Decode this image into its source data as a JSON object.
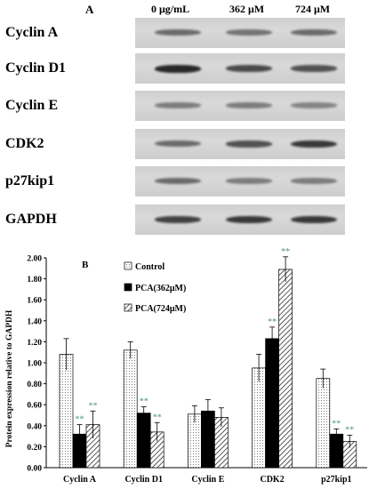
{
  "panel_a": {
    "label": "A",
    "concentrations": [
      "0 μg/mL",
      "362 μM",
      "724 μM"
    ],
    "blots": [
      {
        "label": "Cyclin A",
        "band_intensity": [
          0.55,
          0.5,
          0.55
        ]
      },
      {
        "label": "Cyclin D1",
        "band_intensity": [
          0.95,
          0.75,
          0.7
        ]
      },
      {
        "label": "Cyclin E",
        "band_intensity": [
          0.45,
          0.45,
          0.4
        ]
      },
      {
        "label": "CDK2",
        "band_intensity": [
          0.55,
          0.7,
          0.85
        ]
      },
      {
        "label": "p27kip1",
        "band_intensity": [
          0.55,
          0.45,
          0.45
        ]
      },
      {
        "label": "GAPDH",
        "band_intensity": [
          0.8,
          0.85,
          0.85
        ]
      }
    ]
  },
  "panel_b": {
    "label": "B",
    "significance_marker": "**"
  },
  "chart_data": {
    "type": "bar",
    "title": "",
    "xlabel": "",
    "ylabel": "Protein expression relative to GAPDH",
    "ylim": [
      0,
      2.0
    ],
    "yticks": [
      "0.00",
      "0.20",
      "0.40",
      "0.60",
      "0.80",
      "1.00",
      "1.20",
      "1.40",
      "1.60",
      "1.80",
      "2.00"
    ],
    "categories": [
      "Cyclin A",
      "Cyclin D1",
      "Cyclin E",
      "CDK2",
      "p27kip1"
    ],
    "series": [
      {
        "name": "Control",
        "pattern": "dots",
        "values": [
          1.08,
          1.12,
          0.51,
          0.95,
          0.85
        ],
        "errors": [
          0.15,
          0.08,
          0.08,
          0.13,
          0.09
        ],
        "significant": [
          false,
          false,
          false,
          false,
          false
        ]
      },
      {
        "name": "PCA(362μM)",
        "pattern": "solid",
        "values": [
          0.32,
          0.52,
          0.54,
          1.23,
          0.32
        ],
        "errors": [
          0.09,
          0.06,
          0.11,
          0.11,
          0.05
        ],
        "significant": [
          true,
          true,
          false,
          true,
          true
        ]
      },
      {
        "name": "PCA(724μM)",
        "pattern": "hatch",
        "values": [
          0.41,
          0.34,
          0.48,
          1.89,
          0.25
        ],
        "errors": [
          0.13,
          0.09,
          0.09,
          0.12,
          0.06
        ],
        "significant": [
          true,
          true,
          false,
          true,
          true
        ]
      }
    ],
    "legend_position": "top-right",
    "grid": false
  }
}
